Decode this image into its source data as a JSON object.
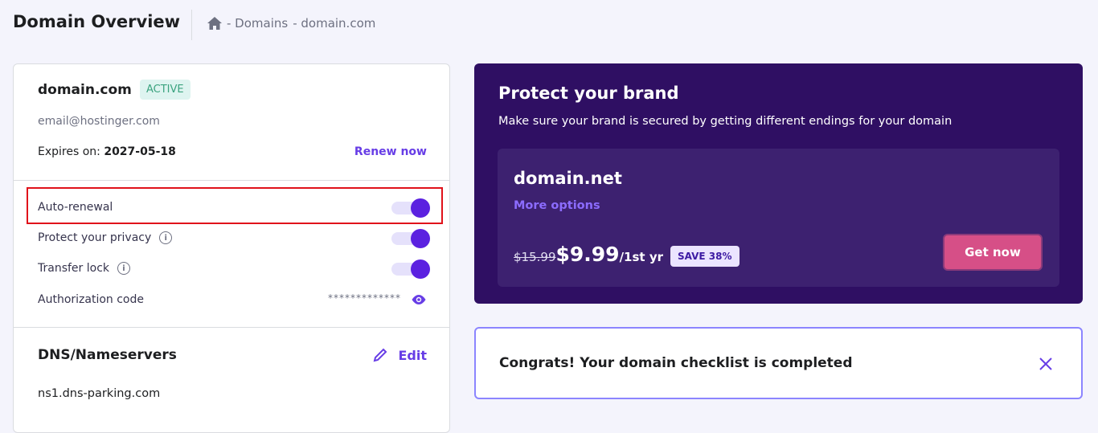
{
  "header": {
    "title": "Domain Overview",
    "breadcrumb": [
      "- Domains",
      "- domain.com"
    ]
  },
  "domain_card": {
    "name": "domain.com",
    "status": "ACTIVE",
    "email": "email@hostinger.com",
    "expires_label": "Expires on:",
    "expires_date": "2027-05-18",
    "renew_label": "Renew now",
    "settings": [
      {
        "label": "Auto-renewal",
        "enabled": true
      },
      {
        "label": "Protect your privacy",
        "enabled": true
      },
      {
        "label": "Transfer lock",
        "enabled": true
      }
    ],
    "auth_label": "Authorization code",
    "auth_value": "*************",
    "dns_title": "DNS/Nameservers",
    "edit_label": "Edit",
    "nameserver": "ns1.dns-parking.com"
  },
  "promo": {
    "title": "Protect your brand",
    "subtitle": "Make sure your brand is secured by getting different endings for your domain",
    "domain": "domain.net",
    "more_options": "More options",
    "old_price": "$15.99",
    "price": "$9.99",
    "period": "/1st yr",
    "save": "SAVE 38%",
    "cta": "Get now"
  },
  "checklist": {
    "message": "Congrats! Your domain checklist is completed"
  },
  "colors": {
    "accent": "#673de6",
    "promo_bg": "#2f0f63",
    "cta": "#d64f87",
    "highlight": "#e0121a"
  }
}
